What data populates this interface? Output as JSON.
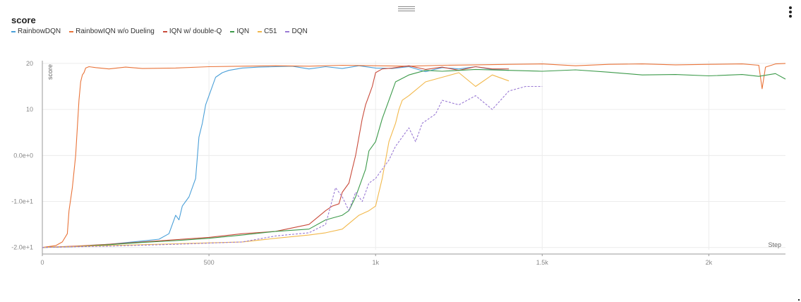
{
  "panel": {
    "title": "score"
  },
  "icons": {
    "drag": "drag-handle-icon",
    "menu": "more-vertical-icon"
  },
  "chart_data": {
    "type": "line",
    "title": "score",
    "xlabel": "Step",
    "ylabel": "score",
    "xlim": [
      0,
      2230
    ],
    "ylim": [
      -20.5,
      20.6
    ],
    "grid": true,
    "legend_position": "top-left",
    "x_ticks": [
      {
        "value": 0,
        "label": "0"
      },
      {
        "value": 500,
        "label": "500"
      },
      {
        "value": 1000,
        "label": "1k"
      },
      {
        "value": 1500,
        "label": "1.5k"
      },
      {
        "value": 2000,
        "label": "2k"
      }
    ],
    "y_ticks": [
      {
        "value": 20,
        "label": "20"
      },
      {
        "value": 10,
        "label": "10"
      },
      {
        "value": 0,
        "label": "0.0e+0"
      },
      {
        "value": -10,
        "label": "-1.0e+1"
      },
      {
        "value": -20,
        "label": "-2.0e+1"
      }
    ],
    "series": [
      {
        "name": "RainbowDQN",
        "color": "#4a9fd8",
        "dashed": false,
        "x": [
          0,
          100,
          200,
          300,
          350,
          380,
          400,
          410,
          420,
          440,
          460,
          470,
          480,
          490,
          500,
          520,
          540,
          560,
          600,
          650,
          700,
          750,
          800,
          850,
          900,
          950,
          1000,
          1050,
          1100,
          1150,
          1200,
          1250,
          1300,
          1350,
          1400
        ],
        "y": [
          -20,
          -19.8,
          -19.3,
          -18.6,
          -18.2,
          -17,
          -13,
          -14,
          -11,
          -9,
          -5,
          4,
          7,
          11,
          13,
          17,
          18,
          18.5,
          19,
          19.2,
          19.3,
          19.4,
          18.8,
          19.3,
          18.9,
          19.5,
          19,
          18.9,
          19.3,
          18.2,
          19.1,
          18.8,
          19.3,
          18.7,
          18.5
        ]
      },
      {
        "name": "RainbowIQN w/o Dueling",
        "color": "#e9743a",
        "dashed": false,
        "x": [
          0,
          40,
          60,
          75,
          80,
          90,
          100,
          110,
          115,
          120,
          125,
          130,
          140,
          160,
          200,
          250,
          300,
          400,
          500,
          600,
          700,
          800,
          900,
          1000,
          1100,
          1200,
          1300,
          1400,
          1500,
          1600,
          1700,
          1800,
          1900,
          2000,
          2100,
          2150,
          2160,
          2170,
          2200,
          2230
        ],
        "y": [
          -20,
          -19.6,
          -18.8,
          -17,
          -12,
          -7,
          0,
          12,
          16,
          17.5,
          18,
          19,
          19.3,
          19.1,
          18.8,
          19.2,
          18.9,
          19,
          19.3,
          19.4,
          19.5,
          19.4,
          19.6,
          19.5,
          19.4,
          19.6,
          19.7,
          19.8,
          19.9,
          19.5,
          19.8,
          19.9,
          19.7,
          19.8,
          19.9,
          19.6,
          14.5,
          19.2,
          19.9,
          20
        ]
      },
      {
        "name": "IQN w/ double-Q",
        "color": "#c94b3b",
        "dashed": false,
        "x": [
          0,
          100,
          200,
          300,
          400,
          500,
          600,
          700,
          800,
          850,
          870,
          890,
          900,
          920,
          930,
          940,
          950,
          960,
          970,
          980,
          990,
          1000,
          1020,
          1050,
          1100,
          1150,
          1200,
          1250,
          1300,
          1350,
          1400
        ],
        "y": [
          -20,
          -19.7,
          -19.3,
          -18.8,
          -18.3,
          -17.8,
          -17,
          -16.5,
          -15,
          -12,
          -11,
          -10.5,
          -8,
          -6,
          -3,
          0,
          4,
          8,
          11,
          13,
          15,
          18,
          18.8,
          19,
          19.5,
          18.7,
          19.2,
          18.5,
          19.3,
          18.8,
          18.8
        ]
      },
      {
        "name": "IQN",
        "color": "#3c9a4a",
        "dashed": false,
        "x": [
          0,
          100,
          200,
          300,
          400,
          500,
          600,
          700,
          800,
          850,
          900,
          920,
          940,
          960,
          970,
          980,
          1000,
          1020,
          1040,
          1060,
          1100,
          1150,
          1200,
          1300,
          1400,
          1500,
          1600,
          1700,
          1800,
          1900,
          2000,
          2100,
          2150,
          2200,
          2230
        ],
        "y": [
          -20,
          -19.8,
          -19.4,
          -18.9,
          -18.5,
          -18,
          -17.3,
          -16.5,
          -16,
          -14,
          -13,
          -12,
          -9,
          -5,
          -3,
          1,
          3,
          8,
          12,
          16,
          17.5,
          18.5,
          18.3,
          18.7,
          18.5,
          18.3,
          18.6,
          18.1,
          17.5,
          17.6,
          17.3,
          17.6,
          17.2,
          17.8,
          16.6
        ]
      },
      {
        "name": "C51",
        "color": "#f2b84b",
        "dashed": false,
        "x": [
          0,
          200,
          400,
          600,
          700,
          800,
          850,
          900,
          950,
          980,
          1000,
          1010,
          1020,
          1030,
          1040,
          1050,
          1060,
          1070,
          1080,
          1100,
          1150,
          1200,
          1250,
          1300,
          1350,
          1400
        ],
        "y": [
          -20,
          -19.6,
          -19.2,
          -18.8,
          -18,
          -17.3,
          -16.8,
          -16,
          -13,
          -12,
          -11,
          -8,
          -5,
          -1,
          3,
          5,
          7,
          10,
          12,
          13,
          16,
          17,
          18,
          15,
          17.5,
          16.2
        ]
      },
      {
        "name": "DQN",
        "color": "#9a7ad4",
        "dashed": true,
        "x": [
          0,
          200,
          400,
          600,
          700,
          800,
          850,
          880,
          900,
          920,
          940,
          960,
          980,
          1000,
          1020,
          1040,
          1060,
          1080,
          1100,
          1120,
          1140,
          1160,
          1180,
          1200,
          1250,
          1300,
          1350,
          1400,
          1450,
          1500
        ],
        "y": [
          -20,
          -19.7,
          -19.3,
          -18.8,
          -17.5,
          -16.8,
          -15,
          -7,
          -9,
          -12,
          -8,
          -10,
          -6,
          -5,
          -3,
          -1,
          2,
          4,
          6,
          3,
          7,
          8,
          9,
          12,
          11,
          13,
          10,
          14,
          15,
          15
        ]
      }
    ]
  }
}
